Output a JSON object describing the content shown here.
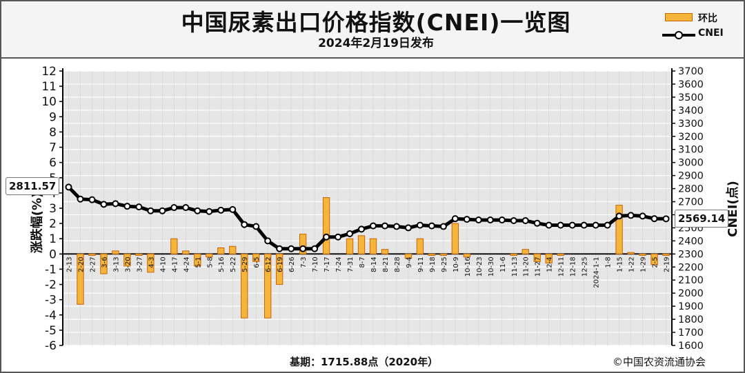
{
  "title": "中国尿素出口价格指数(CNEI)一览图",
  "subtitle": "2024年2月19日发布",
  "legend": {
    "bar_label": "环比",
    "line_label": "CNEI"
  },
  "footer": {
    "base": "基期：1715.88点（2020年）",
    "copyright": "©中国农资流通协会"
  },
  "callouts": {
    "start": "2811.57",
    "end": "2569.14"
  },
  "chart_data": {
    "type": "bar+line",
    "ylabel_left": "涨跌幅(%)",
    "ylabel_right": "CNEI(点)",
    "ylim_left": [
      -6,
      12
    ],
    "ylim_right": [
      1600,
      3700
    ],
    "yticks_left": [
      12,
      11,
      10,
      9,
      8,
      7,
      6,
      5,
      4,
      3,
      2,
      1,
      0,
      -1,
      -2,
      -3,
      -4,
      -5,
      -6
    ],
    "yticks_right": [
      3700,
      3600,
      3500,
      3400,
      3300,
      3200,
      3100,
      3000,
      2900,
      2800,
      2700,
      2600,
      2500,
      2400,
      2300,
      2200,
      2100,
      2000,
      1900,
      1800,
      1700,
      1600
    ],
    "grid": true,
    "legend_position": "top-right",
    "categories": [
      "2-13",
      "2-20",
      "2-27",
      "3-6",
      "3-13",
      "3-20",
      "3-27",
      "4-3",
      "4-10",
      "4-17",
      "4-24",
      "5-1",
      "5-8",
      "5-16",
      "5-22",
      "5-29",
      "6-5",
      "6-12",
      "6-19",
      "6-26",
      "7-3",
      "7-10",
      "7-17",
      "7-24",
      "7-31",
      "8-7",
      "8-14",
      "8-21",
      "8-28",
      "9-4",
      "9-11",
      "9-18",
      "9-25",
      "10-9",
      "10-16",
      "10-23",
      "10-30",
      "11-6",
      "11-13",
      "11-20",
      "11-27",
      "12-4",
      "12-11",
      "12-18",
      "12-25",
      "2024-1-1",
      "1-8",
      "1-15",
      "1-22",
      "1-29",
      "2-5",
      "2-19"
    ],
    "series": [
      {
        "name": "环比",
        "kind": "bar",
        "color": "#f5b43a",
        "values": [
          0,
          -3.3,
          -0.1,
          -1.3,
          0.2,
          -0.8,
          -0.1,
          -1.2,
          0.0,
          1.0,
          0.2,
          -0.8,
          -0.2,
          0.4,
          0.5,
          -4.2,
          -0.5,
          -4.2,
          -2.0,
          0.0,
          1.3,
          0.0,
          3.7,
          0.0,
          1.0,
          1.2,
          1.0,
          0.3,
          0.0,
          -0.3,
          1.0,
          -0.1,
          -0.1,
          2.0,
          -0.2,
          0.0,
          0.0,
          0.0,
          -0.1,
          0.3,
          -0.5,
          -0.6,
          -0.1,
          0.0,
          0.0,
          0.0,
          0.0,
          3.2,
          0.1,
          -0.1,
          -0.7,
          -0.1
        ]
      },
      {
        "name": "CNEI",
        "kind": "line",
        "color": "#000000",
        "values": [
          2811.57,
          2720,
          2715,
          2680,
          2685,
          2665,
          2660,
          2630,
          2630,
          2655,
          2655,
          2630,
          2625,
          2635,
          2640,
          2525,
          2510,
          2400,
          2340,
          2340,
          2340,
          2340,
          2430,
          2430,
          2455,
          2490,
          2515,
          2515,
          2510,
          2500,
          2520,
          2515,
          2510,
          2570,
          2565,
          2560,
          2560,
          2560,
          2555,
          2555,
          2535,
          2520,
          2520,
          2520,
          2520,
          2520,
          2520,
          2590,
          2595,
          2590,
          2570,
          2569.14
        ]
      }
    ]
  }
}
